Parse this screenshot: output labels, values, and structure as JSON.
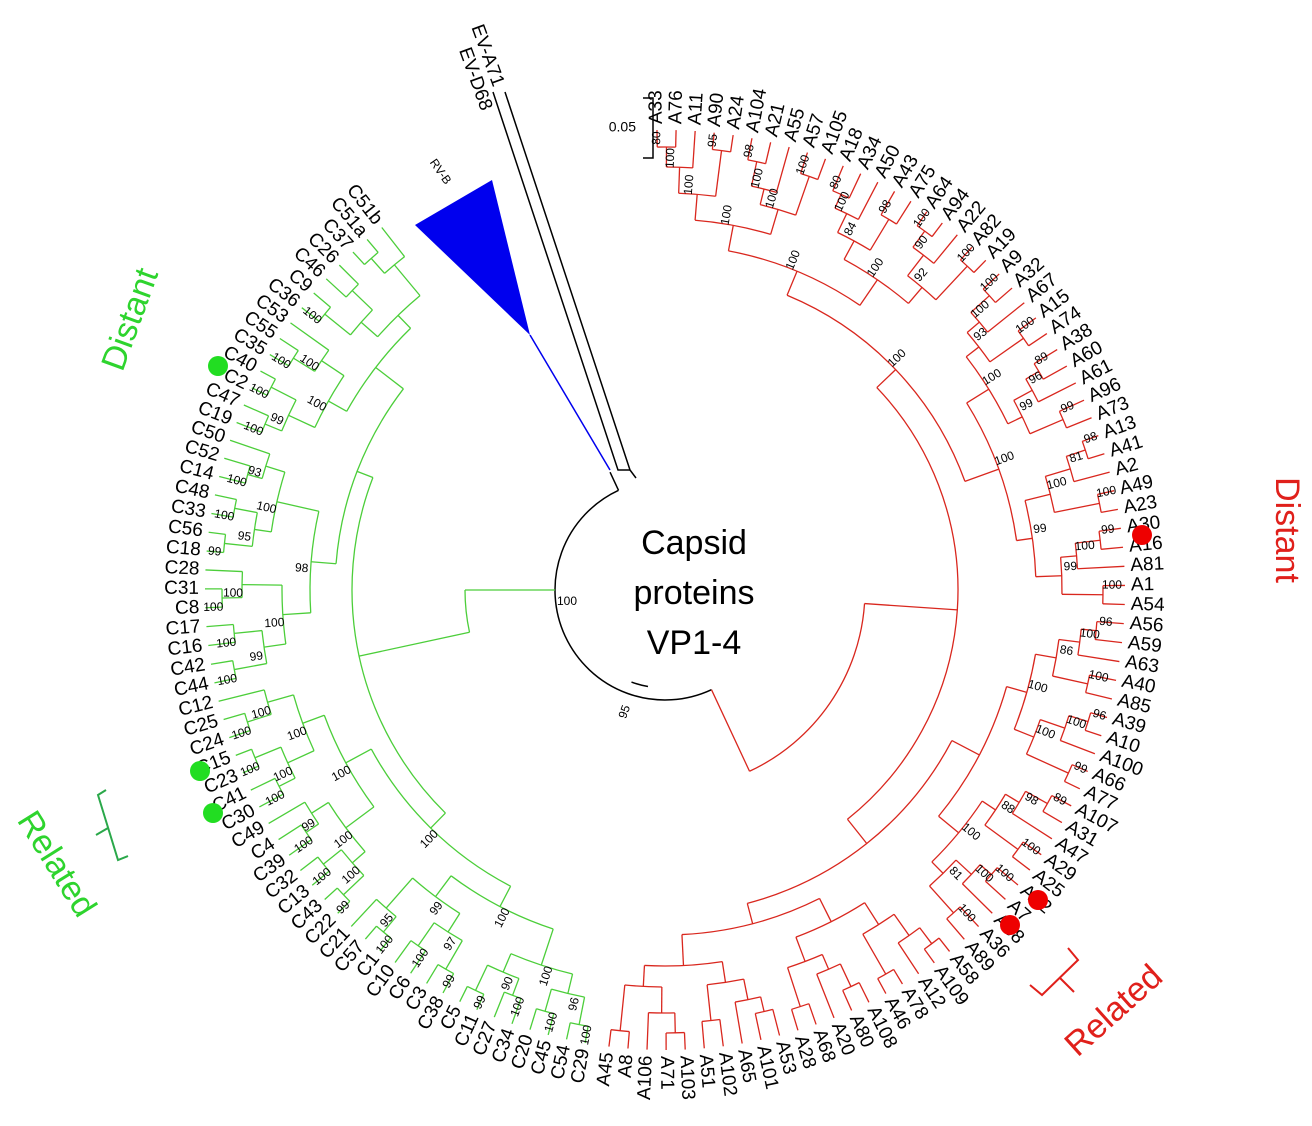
{
  "title_lines": [
    "Capsid",
    "proteins",
    "VP1-4"
  ],
  "scale_label": "0.05",
  "outgroups": [
    "EV-A71",
    "EV-D68",
    "RV-B"
  ],
  "root_bootstrap": [
    "100",
    "95"
  ],
  "clades": [
    {
      "color": "#d9271e",
      "annotations": [
        "Distant",
        "Related"
      ],
      "leaves": [
        "A33",
        "A76",
        "A11",
        "A90",
        "A24",
        "A104",
        "A21",
        "A55",
        "A57",
        "A105",
        "A18",
        "A34",
        "A50",
        "A43",
        "A75",
        "A64",
        "A94",
        "A22",
        "A82",
        "A19",
        "A9",
        "A32",
        "A67",
        "A15",
        "A74",
        "A38",
        "A60",
        "A61",
        "A96",
        "A73",
        "A13",
        "A41",
        "A2",
        "A49",
        "A23",
        "A30",
        "A16",
        "A81",
        "A1",
        "A54",
        "A56",
        "A59",
        "A63",
        "A40",
        "A85",
        "A39",
        "A10",
        "A100",
        "A66",
        "A77",
        "A107",
        "A31",
        "A47",
        "A29",
        "A25",
        "A62",
        "A7",
        "A88",
        "A36",
        "A89",
        "A58",
        "A109",
        "A12",
        "A78",
        "A46",
        "A108",
        "A80",
        "A20",
        "A68",
        "A28",
        "A53",
        "A101",
        "A65",
        "A102",
        "A51",
        "A103",
        "A71",
        "A106",
        "A8",
        "A45"
      ],
      "bootstrap": [
        "80",
        "100",
        "95",
        "100",
        "98",
        "100",
        "100",
        "100",
        "100",
        "80",
        "100",
        "98",
        "84",
        "100",
        "90",
        "100",
        "92",
        "100",
        "100",
        "100",
        "100",
        "100",
        "93",
        "89",
        "96",
        "99",
        "99",
        "100",
        "98",
        "81",
        "100",
        "100",
        "99",
        "100",
        "100",
        "99",
        "99",
        "100",
        "100",
        "96",
        "100",
        "100",
        "86",
        "96",
        "100",
        "99",
        "100",
        "100",
        "89",
        "98",
        "100",
        "88",
        "100",
        "100",
        "100",
        "81",
        "100"
      ]
    },
    {
      "color": "#4cce3a",
      "annotations": [
        "Distant",
        "Related"
      ],
      "leaves": [
        "C29",
        "C54",
        "C45",
        "C20",
        "C34",
        "C27",
        "C11",
        "C5",
        "C38",
        "C3",
        "C6",
        "C10",
        "C1",
        "C57",
        "C21",
        "C22",
        "C43",
        "C13",
        "C32",
        "C39",
        "C4",
        "C49",
        "C30",
        "C41",
        "C23",
        "C15",
        "C24",
        "C25",
        "C12",
        "C44",
        "C42",
        "C16",
        "C17",
        "C8",
        "C31",
        "C28",
        "C18",
        "C56",
        "C33",
        "C48",
        "C14",
        "C52",
        "C50",
        "C19",
        "C47",
        "C2",
        "C40",
        "C35",
        "C55",
        "C53",
        "C36",
        "C9",
        "C46",
        "C26",
        "C37",
        "C51a",
        "C51b"
      ],
      "bootstrap": [
        "100",
        "100",
        "96",
        "100",
        "99",
        "90",
        "100",
        "99",
        "100",
        "97",
        "100",
        "95",
        "99",
        "100",
        "99",
        "100",
        "100",
        "100",
        "99",
        "100",
        "100",
        "100",
        "100",
        "100",
        "100",
        "100",
        "100",
        "100",
        "100",
        "100",
        "99",
        "100",
        "100",
        "100",
        "99",
        "100",
        "95",
        "100",
        "93",
        "100",
        "98",
        "100",
        "100",
        "99",
        "100",
        "100",
        "100",
        "100"
      ]
    }
  ]
}
